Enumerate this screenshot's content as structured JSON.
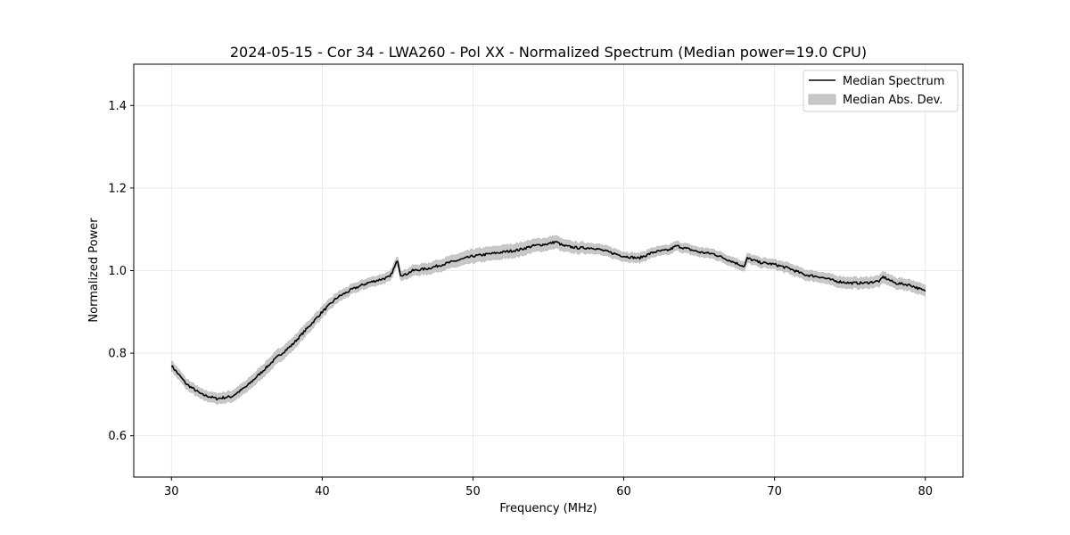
{
  "chart_data": {
    "type": "line",
    "title": "2024-05-15 - Cor 34 - LWA260 - Pol XX - Normalized Spectrum (Median power=19.0 CPU)",
    "xlabel": "Frequency (MHz)",
    "ylabel": "Normalized Power",
    "xlim": [
      27.5,
      82.5
    ],
    "ylim": [
      0.5,
      1.5
    ],
    "xticks": [
      30,
      40,
      50,
      60,
      70,
      80
    ],
    "yticks": [
      0.6,
      0.8,
      1.0,
      1.2,
      1.4
    ],
    "grid": true,
    "legend_position": "top-right",
    "series": [
      {
        "name": "Median Spectrum",
        "color": "#000000",
        "x": [
          30,
          31,
          32,
          33,
          34,
          35,
          36,
          37,
          38,
          39,
          40,
          41,
          42,
          43,
          44,
          44.5,
          45,
          45.2,
          45.5,
          46,
          47,
          48,
          49,
          50,
          51,
          52,
          53,
          54,
          55,
          55.5,
          56,
          57,
          58,
          59,
          60,
          61,
          62,
          63,
          63.5,
          64,
          65,
          66,
          67,
          68,
          68.2,
          69,
          70,
          71,
          72,
          73,
          74,
          75,
          76,
          77,
          77.2,
          78,
          79,
          80
        ],
        "y": [
          0.77,
          0.725,
          0.7,
          0.69,
          0.695,
          0.72,
          0.755,
          0.79,
          0.82,
          0.86,
          0.9,
          0.935,
          0.955,
          0.97,
          0.98,
          0.985,
          1.025,
          0.99,
          0.99,
          1.0,
          1.005,
          1.015,
          1.025,
          1.035,
          1.04,
          1.045,
          1.05,
          1.06,
          1.065,
          1.07,
          1.06,
          1.055,
          1.055,
          1.045,
          1.035,
          1.03,
          1.045,
          1.05,
          1.06,
          1.055,
          1.045,
          1.04,
          1.025,
          1.01,
          1.03,
          1.02,
          1.015,
          1.005,
          0.99,
          0.985,
          0.975,
          0.97,
          0.97,
          0.975,
          0.985,
          0.97,
          0.965,
          0.95
        ]
      }
    ],
    "band": {
      "name": "Median Abs. Dev.",
      "color": "#c8c8c8",
      "half_width": [
        0.012,
        0.012,
        0.012,
        0.012,
        0.013,
        0.014,
        0.015,
        0.016,
        0.015,
        0.014,
        0.013,
        0.012,
        0.011,
        0.011,
        0.011,
        0.011,
        0.011,
        0.011,
        0.011,
        0.012,
        0.013,
        0.014,
        0.015,
        0.016,
        0.016,
        0.016,
        0.016,
        0.015,
        0.015,
        0.015,
        0.014,
        0.013,
        0.012,
        0.012,
        0.011,
        0.011,
        0.011,
        0.011,
        0.011,
        0.011,
        0.011,
        0.011,
        0.011,
        0.011,
        0.011,
        0.011,
        0.011,
        0.012,
        0.012,
        0.012,
        0.013,
        0.013,
        0.013,
        0.013,
        0.013,
        0.013,
        0.013,
        0.013
      ]
    }
  }
}
